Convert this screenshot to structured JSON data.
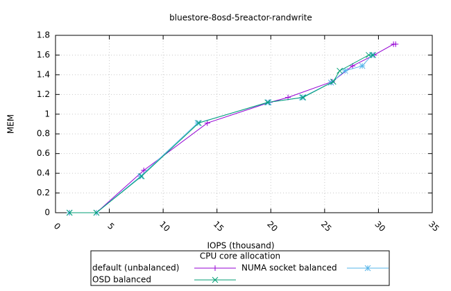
{
  "chart_data": {
    "type": "line",
    "title": "bluestore-8osd-5reactor-randwrite",
    "x_label": "IOPS (thousand)",
    "y_label": "MEM",
    "xlim": [
      0,
      35
    ],
    "xticks": [
      0,
      5,
      10,
      15,
      20,
      25,
      30,
      35
    ],
    "ylim": [
      0,
      1.8
    ],
    "yticks": [
      0,
      0.2,
      0.4,
      0.6,
      0.8,
      1,
      1.2,
      1.4,
      1.6,
      1.8
    ],
    "grid": true,
    "legend_title": "CPU core allocation",
    "series": [
      {
        "name": "default (unbalanced)",
        "color": "#9400d3",
        "marker": "plus",
        "x": [
          1.3,
          3.8,
          8.2,
          14.1,
          19.9,
          21.6,
          25.7,
          27.6,
          29.6,
          31.4,
          31.6
        ],
        "values": [
          0,
          0,
          0.43,
          0.91,
          1.12,
          1.17,
          1.33,
          1.49,
          1.6,
          1.71,
          1.71
        ]
      },
      {
        "name": "NUMA socket balanced",
        "color": "#56b4e9",
        "marker": "star",
        "x": [
          1.3,
          3.8,
          7.9,
          13.2,
          19.8,
          22.9,
          25.6,
          26.9,
          28.5,
          29.4
        ],
        "values": [
          0,
          0,
          0.37,
          0.91,
          1.12,
          1.17,
          1.32,
          1.44,
          1.49,
          1.6
        ]
      },
      {
        "name": "OSD balanced",
        "color": "#009e73",
        "marker": "cross",
        "x": [
          1.3,
          3.8,
          8.0,
          13.3,
          19.7,
          23.0,
          25.8,
          26.4,
          29.1,
          29.5
        ],
        "values": [
          0,
          0,
          0.37,
          0.91,
          1.12,
          1.17,
          1.33,
          1.44,
          1.6,
          1.6
        ]
      }
    ]
  }
}
